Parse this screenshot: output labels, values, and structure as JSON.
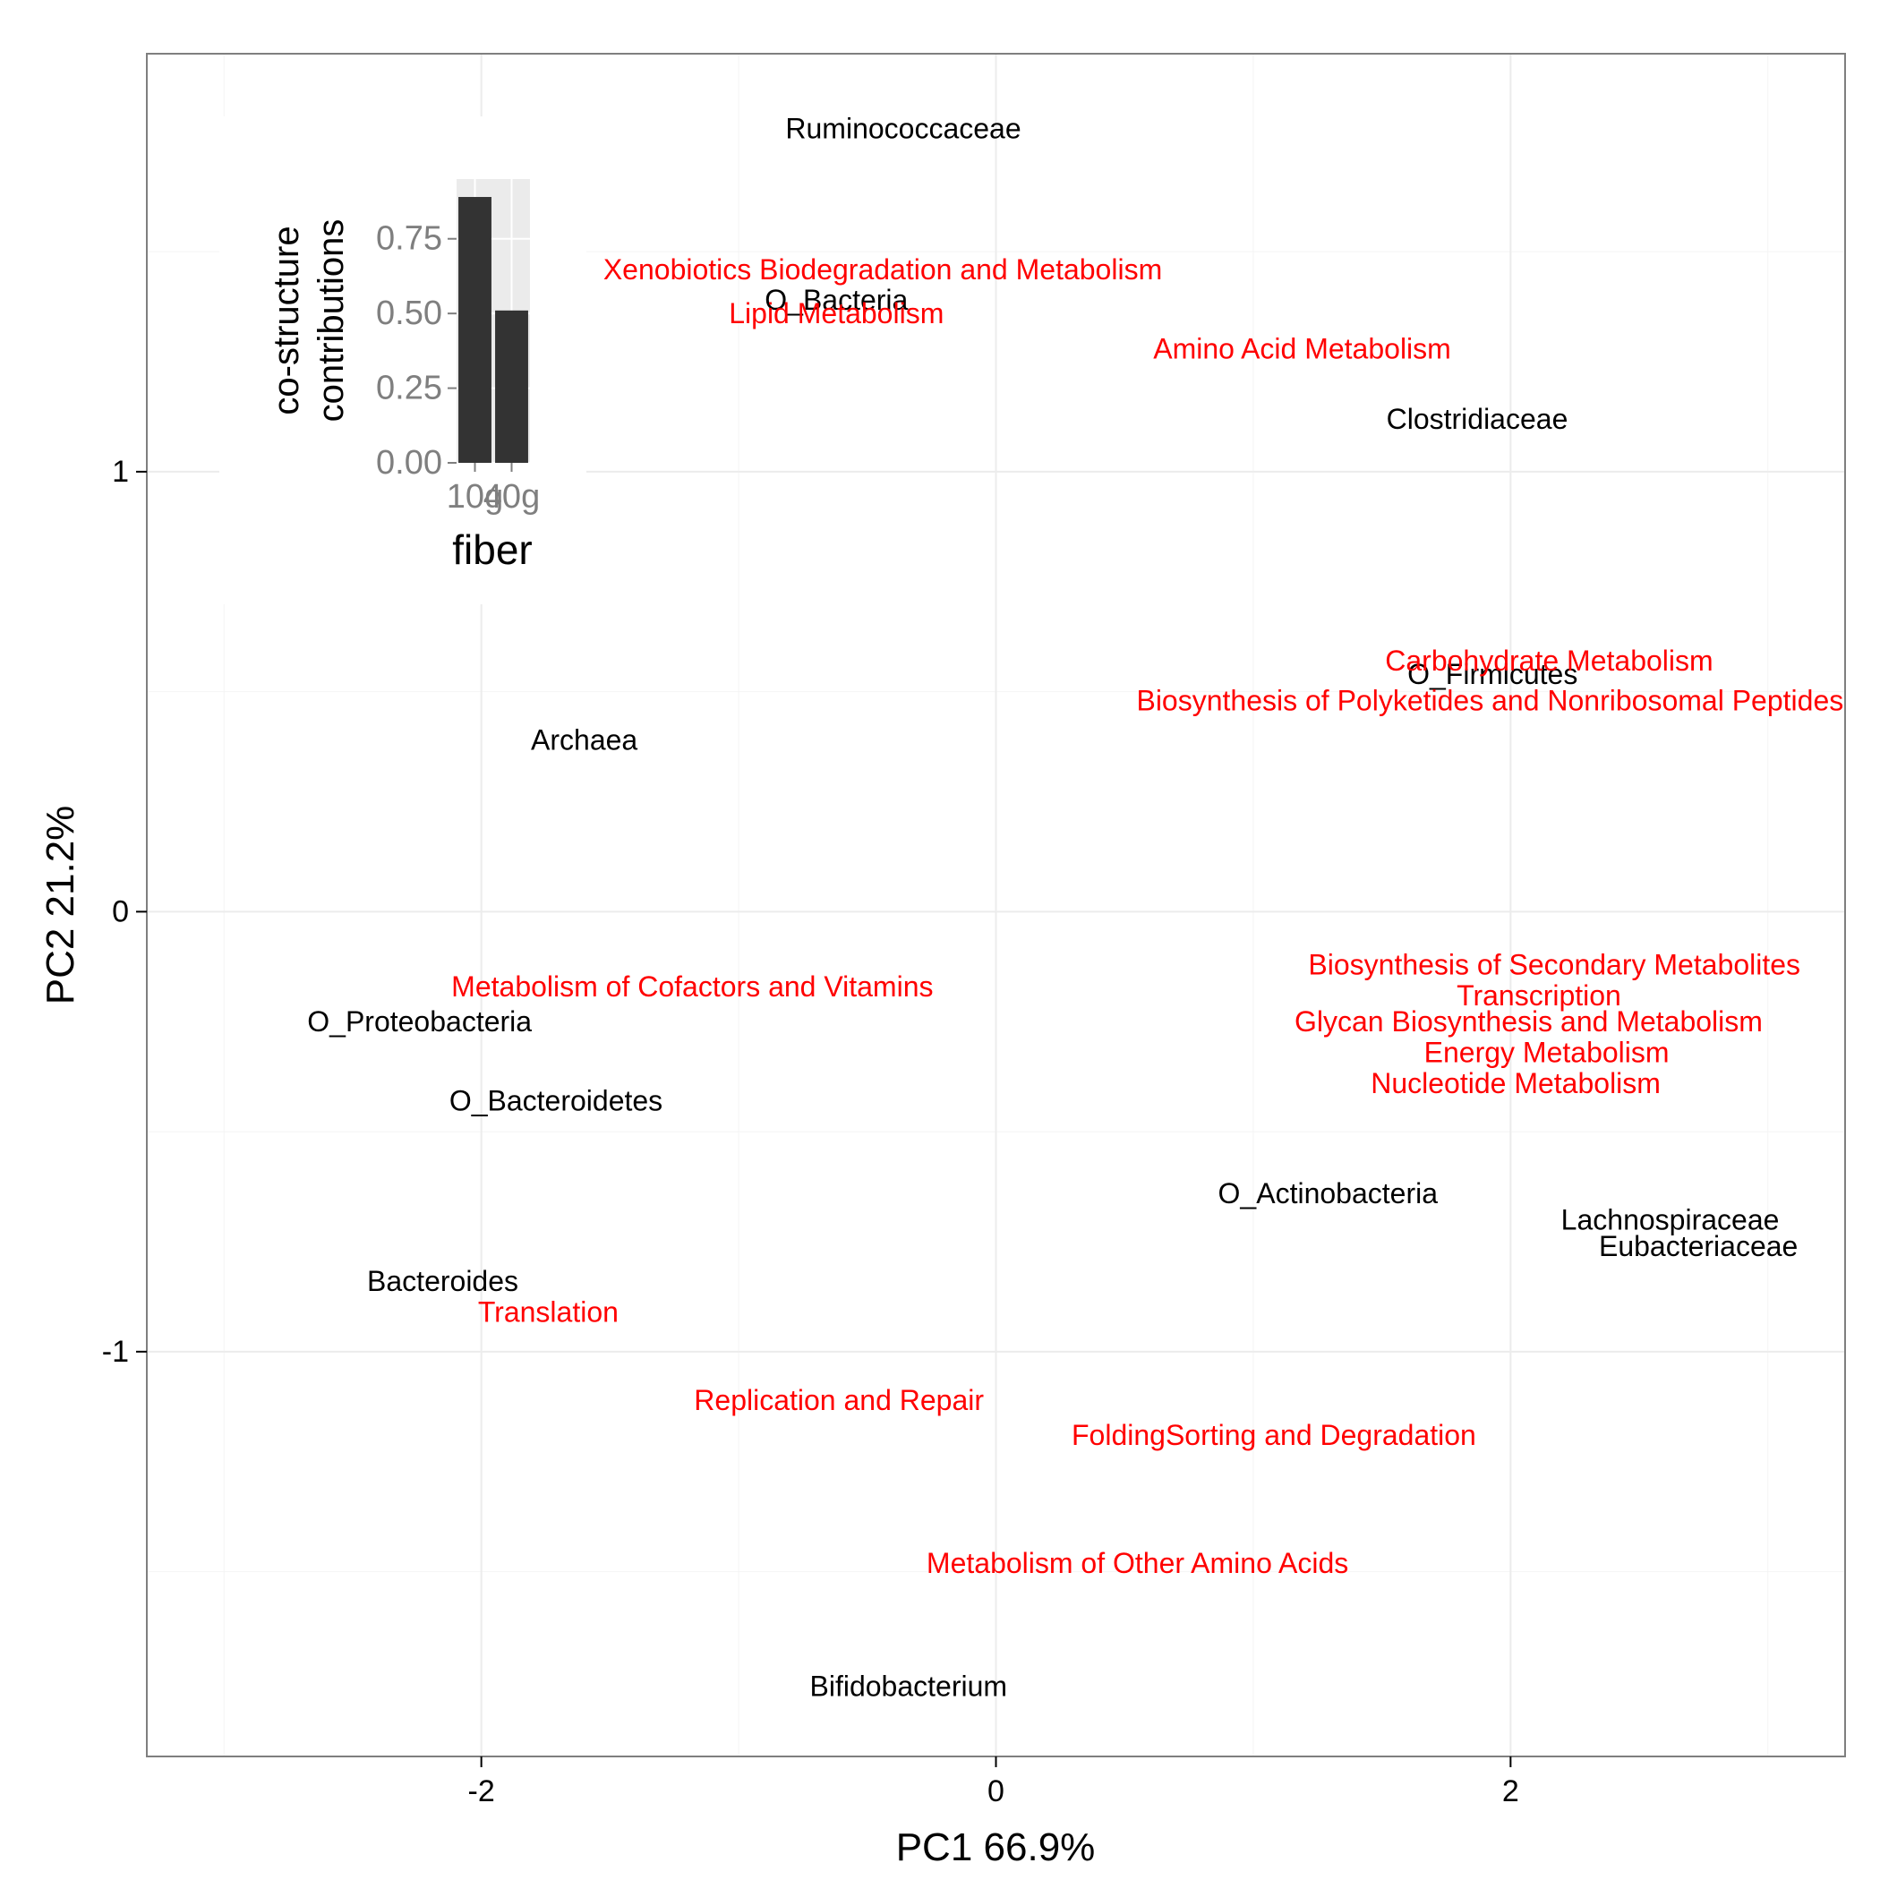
{
  "chart_data": [
    {
      "type": "scatter",
      "title": "",
      "xlabel": "PC1 66.9%",
      "ylabel": "PC2 21.2%",
      "xlim": [
        -3.3,
        3.3
      ],
      "ylim": [
        -1.92,
        1.95
      ],
      "xticks": [
        -2,
        0,
        2
      ],
      "xtick_labels": [
        "-2",
        "0",
        "2"
      ],
      "yticks": [
        -1,
        0,
        1
      ],
      "ytick_labels": [
        "-1",
        "0",
        "1"
      ],
      "grid": true,
      "colors": {
        "taxa": "#000000",
        "pathways": "#ff0000",
        "grid": "#f4f4f4",
        "frame": "#7f7f7f"
      },
      "series": [
        {
          "color": "#000000",
          "points": [
            {
              "label": "Ruminococcaceae",
              "x": -0.36,
              "y": 1.78
            },
            {
              "label": "O_Bacteria",
              "x": -0.62,
              "y": 1.39
            },
            {
              "label": "Clostridiaceae",
              "x": 1.87,
              "y": 1.12
            },
            {
              "label": "O_Firmicutes",
              "x": 1.93,
              "y": 0.54
            },
            {
              "label": "Archaea",
              "x": -1.6,
              "y": 0.39
            },
            {
              "label": "O_Proteobacteria",
              "x": -2.24,
              "y": -0.25
            },
            {
              "label": "O_Bacteroidetes",
              "x": -1.71,
              "y": -0.43
            },
            {
              "label": "O_Actinobacteria",
              "x": 1.29,
              "y": -0.64
            },
            {
              "label": "Lachnospiraceae",
              "x": 2.62,
              "y": -0.7
            },
            {
              "label": "Eubacteriaceae",
              "x": 2.73,
              "y": -0.76
            },
            {
              "label": "Bacteroides",
              "x": -2.15,
              "y": -0.84
            },
            {
              "label": "Bifidobacterium",
              "x": -0.34,
              "y": -1.76
            }
          ]
        },
        {
          "color": "#ff0000",
          "points": [
            {
              "label": "Xenobiotics Biodegradation and Metabolism",
              "x": -0.44,
              "y": 1.46
            },
            {
              "label": "Lipid Metabolism",
              "x": -0.62,
              "y": 1.36
            },
            {
              "label": "Amino Acid Metabolism",
              "x": 1.19,
              "y": 1.28
            },
            {
              "label": "Carbohydrate Metabolism",
              "x": 2.15,
              "y": 0.57
            },
            {
              "label": "Biosynthesis of Polyketides and Nonribosomal Peptides",
              "x": 1.92,
              "y": 0.48
            },
            {
              "label": "Metabolism of Cofactors and Vitamins",
              "x": -1.18,
              "y": -0.17
            },
            {
              "label": "Biosynthesis of Secondary Metabolites",
              "x": 2.17,
              "y": -0.12
            },
            {
              "label": "Transcription",
              "x": 2.11,
              "y": -0.19
            },
            {
              "label": "Glycan Biosynthesis and Metabolism",
              "x": 2.07,
              "y": -0.25
            },
            {
              "label": "Energy Metabolism",
              "x": 2.14,
              "y": -0.32
            },
            {
              "label": "Nucleotide Metabolism",
              "x": 2.02,
              "y": -0.39
            },
            {
              "label": "Translation",
              "x": -1.74,
              "y": -0.91
            },
            {
              "label": "Replication and Repair",
              "x": -0.61,
              "y": -1.11
            },
            {
              "label": "FoldingSorting and Degradation",
              "x": 1.08,
              "y": -1.19
            },
            {
              "label": "Metabolism of Other Amino Acids",
              "x": 0.55,
              "y": -1.48
            }
          ]
        }
      ]
    },
    {
      "type": "bar",
      "title": "",
      "xlabel": "fiber",
      "ylabel": "co-structure contributions",
      "ylabel_lines": [
        "co-structure",
        "contributions"
      ],
      "categories": [
        "10g",
        "40g"
      ],
      "values": [
        0.89,
        0.51
      ],
      "ylim": [
        0,
        0.95
      ],
      "yticks": [
        0,
        0.25,
        0.5,
        0.75
      ],
      "ytick_labels": [
        "0.00",
        "0.25",
        "0.50",
        "0.75"
      ],
      "grid": true,
      "colors": {
        "bar": "#333333",
        "panel": "#ebebeb",
        "grid": "#ffffff",
        "axis_text": "#7f7f7f"
      }
    }
  ]
}
